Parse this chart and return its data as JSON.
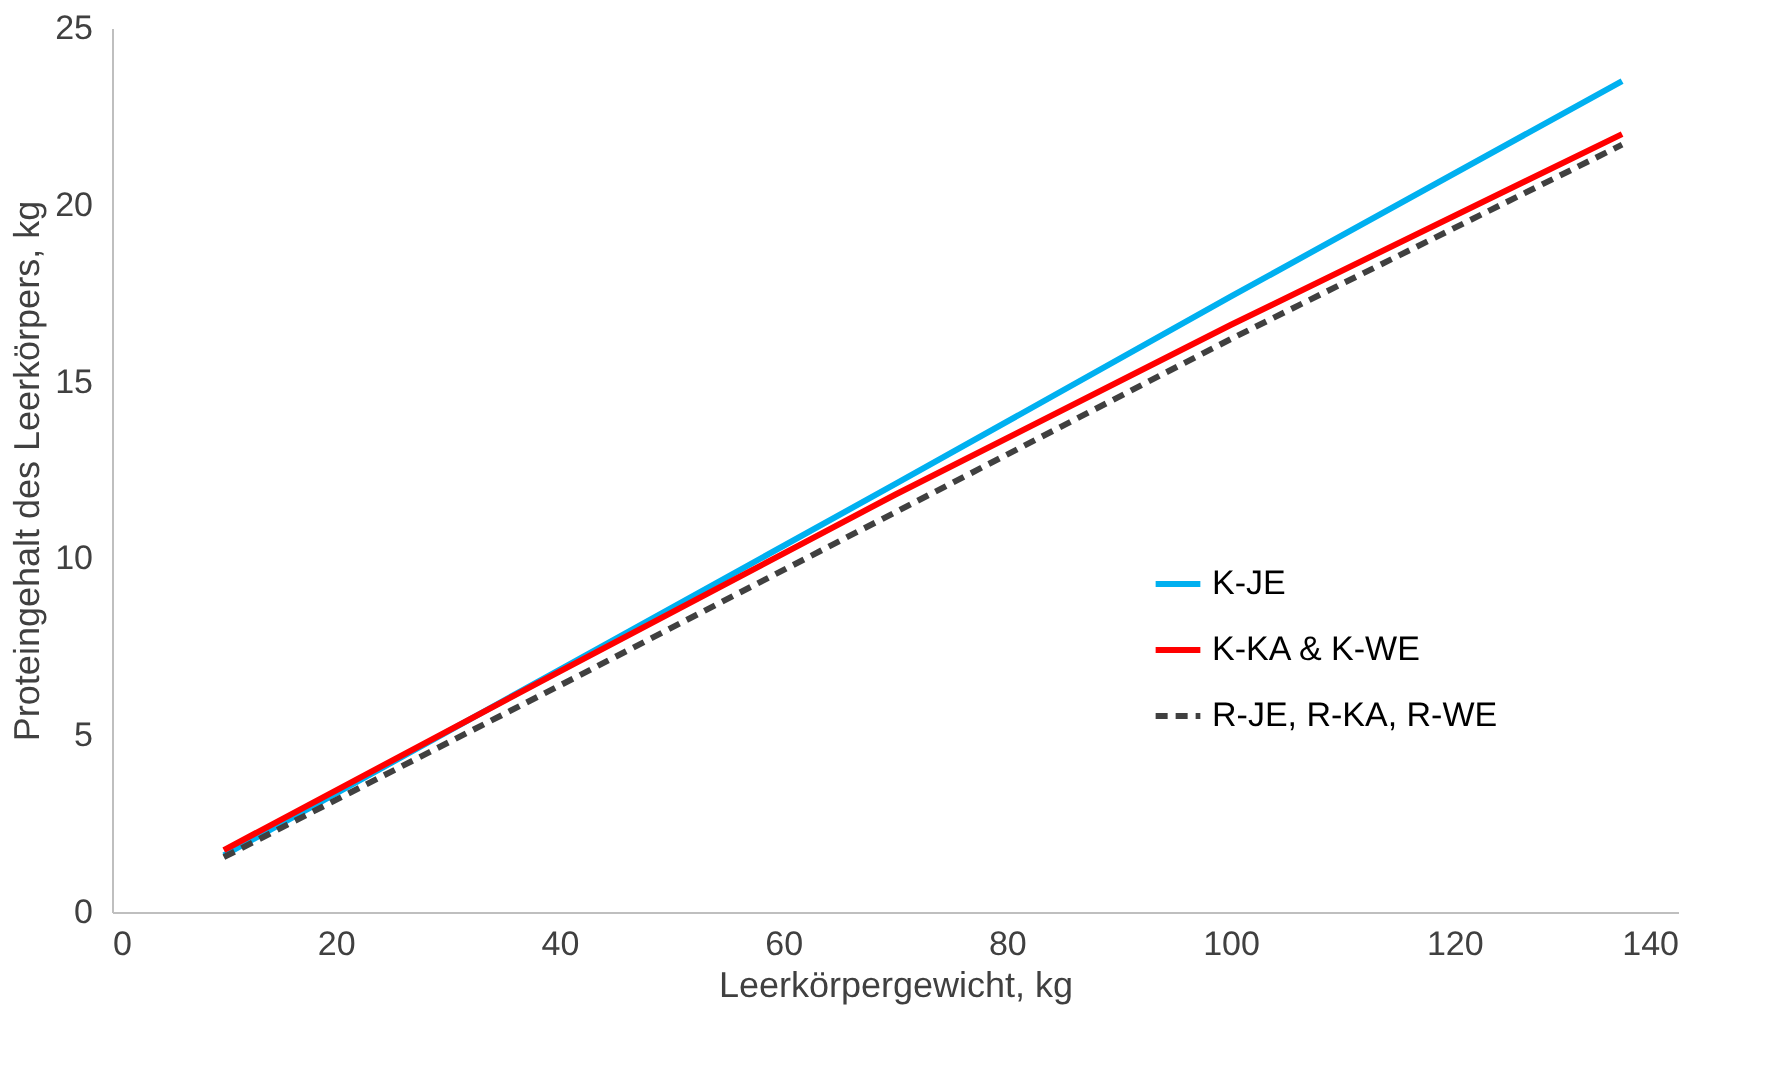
{
  "chart_data": {
    "type": "line",
    "xlabel": "Leerkörpergewicht, kg",
    "ylabel": "Proteingehalt des Leerkörpers, kg",
    "xlim": [
      0,
      140
    ],
    "xticks": [
      0,
      20,
      40,
      60,
      80,
      100,
      120,
      140
    ],
    "ylim": [
      0,
      25
    ],
    "yticks": [
      0,
      5,
      10,
      15,
      20,
      25
    ],
    "grid": false,
    "legend": "bottom right",
    "marker": "none",
    "series": [
      {
        "name": "K-JE",
        "color": "#00b0f0",
        "line_style": "solid",
        "x": [
          10,
          40,
          70,
          100,
          135
        ],
        "values": [
          1.6,
          6.85,
          12.1,
          17.4,
          23.5
        ]
      },
      {
        "name": "K-KA & K-WE",
        "color": "#ff0000",
        "line_style": "solid",
        "x": [
          10,
          40,
          70,
          100,
          135
        ],
        "values": [
          1.75,
          6.8,
          11.8,
          16.6,
          22.0
        ]
      },
      {
        "name": "R-JE, R-KA, R-WE",
        "color": "#404040",
        "line_style": "dashed",
        "x": [
          10,
          40,
          70,
          100,
          135
        ],
        "values": [
          1.55,
          6.4,
          11.3,
          16.2,
          21.7
        ]
      }
    ]
  }
}
